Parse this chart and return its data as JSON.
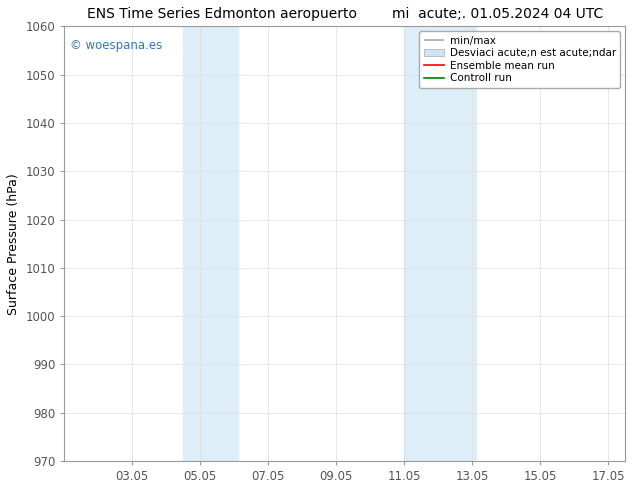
{
  "title_left": "ENS Time Series Edmonton aeropuerto",
  "title_right": "mi  acute;. 01.05.2024 04 UTC",
  "ylabel": "Surface Pressure (hPa)",
  "ylim": [
    970,
    1060
  ],
  "yticks": [
    970,
    980,
    990,
    1000,
    1010,
    1020,
    1030,
    1040,
    1050,
    1060
  ],
  "xlim": [
    1.0,
    17.5
  ],
  "xtick_labels": [
    "03.05",
    "05.05",
    "07.05",
    "09.05",
    "11.05",
    "13.05",
    "15.05",
    "17.05"
  ],
  "xtick_positions": [
    3,
    5,
    7,
    9,
    11,
    13,
    15,
    17
  ],
  "shaded_bands": [
    {
      "x_start": 4.5,
      "x_end": 6.1,
      "color": "#ddeef8"
    },
    {
      "x_start": 11.0,
      "x_end": 13.1,
      "color": "#ddeef8"
    }
  ],
  "legend_labels": [
    "min/max",
    "Desviaci acute;n est acute;ndar",
    "Ensemble mean run",
    "Controll run"
  ],
  "legend_colors": [
    "#aaaaaa",
    "#cce5f5",
    "#ff0000",
    "#008000"
  ],
  "watermark": "© woespana.es",
  "watermark_color": "#3377bb",
  "background_color": "#ffffff",
  "plot_bg_color": "#ffffff",
  "spine_color": "#999999",
  "tick_color": "#555555",
  "title_fontsize": 10,
  "axis_label_fontsize": 9,
  "tick_fontsize": 8.5,
  "legend_fontsize": 7.5
}
